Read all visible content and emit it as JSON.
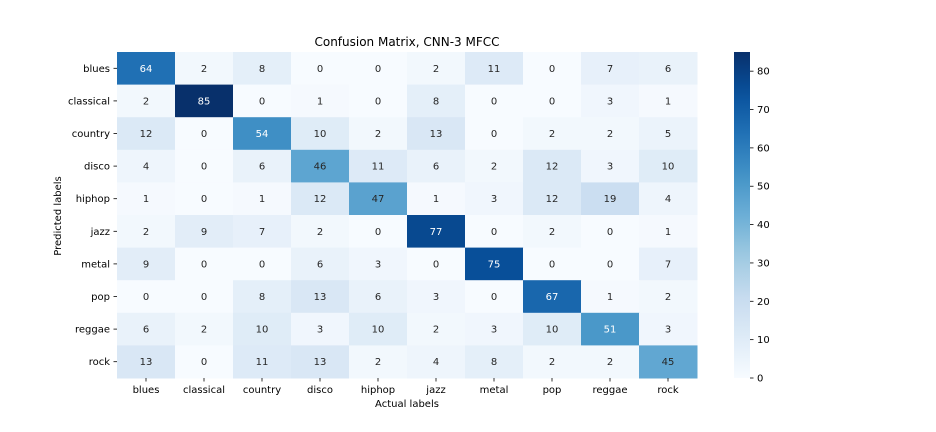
{
  "chart_data": {
    "type": "heatmap",
    "title": "Confusion Matrix, CNN-3 MFCC",
    "xlabel": "Actual labels",
    "ylabel": "Predicted labels",
    "x_categories": [
      "blues",
      "classical",
      "country",
      "disco",
      "hiphop",
      "jazz",
      "metal",
      "pop",
      "reggae",
      "rock"
    ],
    "y_categories": [
      "blues",
      "classical",
      "country",
      "disco",
      "hiphop",
      "jazz",
      "metal",
      "pop",
      "reggae",
      "rock"
    ],
    "values": [
      [
        64,
        2,
        8,
        0,
        0,
        2,
        11,
        0,
        7,
        6
      ],
      [
        2,
        85,
        0,
        1,
        0,
        8,
        0,
        0,
        3,
        1
      ],
      [
        12,
        0,
        54,
        10,
        2,
        13,
        0,
        2,
        2,
        5
      ],
      [
        4,
        0,
        6,
        46,
        11,
        6,
        2,
        12,
        3,
        10
      ],
      [
        1,
        0,
        1,
        12,
        47,
        1,
        3,
        12,
        19,
        4
      ],
      [
        2,
        9,
        7,
        2,
        0,
        77,
        0,
        2,
        0,
        1
      ],
      [
        9,
        0,
        0,
        6,
        3,
        0,
        75,
        0,
        0,
        7
      ],
      [
        0,
        0,
        8,
        13,
        6,
        3,
        0,
        67,
        1,
        2
      ],
      [
        6,
        2,
        10,
        3,
        10,
        2,
        3,
        10,
        51,
        3
      ],
      [
        13,
        0,
        11,
        13,
        2,
        4,
        8,
        2,
        2,
        45
      ]
    ],
    "colorbar": {
      "min": 0,
      "max": 85,
      "ticks": [
        0,
        10,
        20,
        30,
        40,
        50,
        60,
        70,
        80
      ],
      "colormap": "Blues"
    },
    "grid": false,
    "legend": "none"
  }
}
